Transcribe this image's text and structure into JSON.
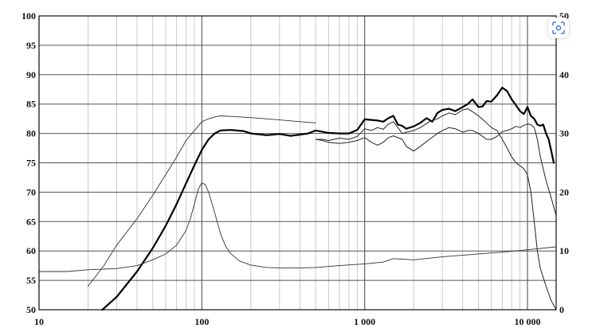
{
  "chart_data": {
    "type": "line",
    "title": "",
    "xlabel": "",
    "ylabel": "",
    "x_scale": "log",
    "xlim": [
      10,
      15000
    ],
    "ylim": [
      50,
      100
    ],
    "y2lim": [
      0,
      50
    ],
    "grid": true,
    "x_major_ticks": [
      {
        "value": 10,
        "label": "10"
      },
      {
        "value": 100,
        "label": "100"
      },
      {
        "value": 1000,
        "label": "1 000"
      },
      {
        "value": 10000,
        "label": "10 000"
      }
    ],
    "y_ticks": [
      {
        "value": 100,
        "label": "100"
      },
      {
        "value": 95,
        "label": "95"
      },
      {
        "value": 90,
        "label": "90"
      },
      {
        "value": 85,
        "label": "85"
      },
      {
        "value": 80,
        "label": "80"
      },
      {
        "value": 75,
        "label": "75"
      },
      {
        "value": 70,
        "label": "70"
      },
      {
        "value": 65,
        "label": "65"
      },
      {
        "value": 60,
        "label": "60"
      },
      {
        "value": 55,
        "label": "55"
      },
      {
        "value": 50,
        "label": "50"
      }
    ],
    "y2_ticks": [
      {
        "value": 50,
        "label": "50"
      },
      {
        "value": 40,
        "label": "40"
      },
      {
        "value": 30,
        "label": "30"
      },
      {
        "value": 20,
        "label": "20"
      },
      {
        "value": 10,
        "label": "10"
      },
      {
        "value": 0,
        "label": "0"
      }
    ],
    "series": [
      {
        "color": "#000000",
        "width": 2.2,
        "axis": "left",
        "points": [
          [
            24.5,
            50
          ],
          [
            30,
            52.2
          ],
          [
            40,
            56.5
          ],
          [
            50,
            60.5
          ],
          [
            60,
            64.3
          ],
          [
            70,
            68
          ],
          [
            80,
            71.5
          ],
          [
            90,
            74.6
          ],
          [
            100,
            77.2
          ],
          [
            110,
            79
          ],
          [
            120,
            80
          ],
          [
            130,
            80.5
          ],
          [
            150,
            80.6
          ],
          [
            180,
            80.4
          ],
          [
            200,
            80
          ],
          [
            250,
            79.7
          ],
          [
            300,
            79.9
          ],
          [
            350,
            79.6
          ],
          [
            400,
            79.8
          ],
          [
            450,
            80
          ],
          [
            500,
            80.5
          ],
          [
            550,
            80.3
          ],
          [
            600,
            80.1
          ],
          [
            700,
            80
          ],
          [
            800,
            80
          ],
          [
            900,
            80.6
          ],
          [
            1000,
            82.4
          ],
          [
            1100,
            82.3
          ],
          [
            1200,
            82.2
          ],
          [
            1300,
            82
          ],
          [
            1400,
            82.6
          ],
          [
            1500,
            83
          ],
          [
            1600,
            81.5
          ],
          [
            1700,
            81.3
          ],
          [
            1800,
            80.8
          ],
          [
            2000,
            81.2
          ],
          [
            2200,
            81.8
          ],
          [
            2400,
            82.6
          ],
          [
            2600,
            82
          ],
          [
            2800,
            83.5
          ],
          [
            3000,
            84
          ],
          [
            3300,
            84.2
          ],
          [
            3600,
            83.8
          ],
          [
            4000,
            84.5
          ],
          [
            4300,
            85
          ],
          [
            4600,
            85.8
          ],
          [
            5000,
            84.5
          ],
          [
            5300,
            84.6
          ],
          [
            5600,
            85.5
          ],
          [
            6000,
            85.4
          ],
          [
            6500,
            86.5
          ],
          [
            7000,
            87.8
          ],
          [
            7500,
            87.2
          ],
          [
            8000,
            85.8
          ],
          [
            8500,
            84.8
          ],
          [
            9000,
            83.8
          ],
          [
            9500,
            83.3
          ],
          [
            10000,
            84.5
          ],
          [
            10500,
            83
          ],
          [
            11000,
            82.5
          ],
          [
            11500,
            81.5
          ],
          [
            12000,
            81.3
          ],
          [
            12500,
            81.5
          ],
          [
            13000,
            80
          ],
          [
            13500,
            79
          ],
          [
            14000,
            77
          ],
          [
            14500,
            75
          ]
        ]
      },
      {
        "color": "#333333",
        "width": 0.9,
        "axis": "left",
        "points": [
          [
            20,
            54
          ],
          [
            25,
            57.5
          ],
          [
            30,
            61
          ],
          [
            40,
            65.5
          ],
          [
            50,
            69.5
          ],
          [
            60,
            73
          ],
          [
            70,
            76
          ],
          [
            80,
            78.8
          ],
          [
            90,
            80.5
          ],
          [
            100,
            82
          ],
          [
            110,
            82.5
          ],
          [
            120,
            82.8
          ],
          [
            130,
            83
          ],
          [
            150,
            82.9
          ],
          [
            200,
            82.7
          ],
          [
            300,
            82.3
          ],
          [
            400,
            82
          ],
          [
            500,
            81.8
          ]
        ]
      },
      {
        "color": "#222222",
        "width": 1.0,
        "axis": "left",
        "points": [
          [
            500,
            79
          ],
          [
            550,
            79
          ],
          [
            600,
            78.8
          ],
          [
            700,
            79.2
          ],
          [
            800,
            79
          ],
          [
            900,
            79.5
          ],
          [
            1000,
            80.8
          ],
          [
            1100,
            80.5
          ],
          [
            1200,
            81
          ],
          [
            1300,
            80.7
          ],
          [
            1400,
            81.6
          ],
          [
            1500,
            82
          ],
          [
            1600,
            81
          ],
          [
            1700,
            80
          ],
          [
            1800,
            80.2
          ],
          [
            2000,
            80.5
          ],
          [
            2200,
            81
          ],
          [
            2500,
            82
          ],
          [
            2800,
            82.5
          ],
          [
            3000,
            83
          ],
          [
            3300,
            83.5
          ],
          [
            3600,
            83.2
          ],
          [
            4000,
            84
          ],
          [
            4300,
            84.2
          ],
          [
            4600,
            83.7
          ],
          [
            5000,
            83
          ],
          [
            5500,
            82
          ],
          [
            6000,
            81
          ],
          [
            6500,
            80.5
          ],
          [
            7000,
            79
          ],
          [
            7500,
            77.5
          ],
          [
            8000,
            76
          ],
          [
            8500,
            75
          ],
          [
            9000,
            74.5
          ],
          [
            9500,
            74
          ],
          [
            10000,
            73
          ],
          [
            10500,
            70
          ],
          [
            11000,
            65
          ],
          [
            11500,
            60
          ],
          [
            12000,
            57
          ],
          [
            13000,
            54
          ],
          [
            14000,
            51.5
          ],
          [
            15000,
            50
          ]
        ]
      },
      {
        "color": "#222222",
        "width": 1.0,
        "axis": "left",
        "points": [
          [
            500,
            79
          ],
          [
            550,
            78.8
          ],
          [
            600,
            78.5
          ],
          [
            700,
            78.3
          ],
          [
            800,
            78.5
          ],
          [
            900,
            78.8
          ],
          [
            1000,
            79.3
          ],
          [
            1100,
            78.5
          ],
          [
            1200,
            78
          ],
          [
            1300,
            78.5
          ],
          [
            1400,
            79.3
          ],
          [
            1500,
            79.6
          ],
          [
            1700,
            79
          ],
          [
            1800,
            77.8
          ],
          [
            2000,
            77
          ],
          [
            2200,
            77.8
          ],
          [
            2500,
            79
          ],
          [
            2800,
            80
          ],
          [
            3000,
            80.5
          ],
          [
            3300,
            81
          ],
          [
            3600,
            80.8
          ],
          [
            4000,
            80.2
          ],
          [
            4300,
            80.5
          ],
          [
            4600,
            80.5
          ],
          [
            5000,
            80
          ],
          [
            5300,
            79.5
          ],
          [
            5600,
            79
          ],
          [
            6000,
            79
          ],
          [
            6500,
            79.5
          ],
          [
            7000,
            80.3
          ],
          [
            7500,
            80.5
          ],
          [
            8000,
            80.8
          ],
          [
            8500,
            81.2
          ],
          [
            9000,
            81
          ],
          [
            9500,
            81.4
          ],
          [
            10000,
            81.6
          ],
          [
            10500,
            81.5
          ],
          [
            11000,
            81
          ],
          [
            11500,
            79
          ],
          [
            12000,
            76
          ],
          [
            13000,
            72
          ],
          [
            14000,
            69
          ],
          [
            15000,
            66
          ]
        ]
      },
      {
        "color": "#333333",
        "width": 0.9,
        "axis": "right",
        "points": [
          [
            10,
            6.5
          ],
          [
            15,
            6.5
          ],
          [
            20,
            6.8
          ],
          [
            30,
            7
          ],
          [
            40,
            7.5
          ],
          [
            50,
            8.5
          ],
          [
            60,
            9.5
          ],
          [
            70,
            11
          ],
          [
            80,
            13.5
          ],
          [
            85,
            15.5
          ],
          [
            90,
            18
          ],
          [
            95,
            20.5
          ],
          [
            100,
            21.6
          ],
          [
            105,
            21.3
          ],
          [
            110,
            20
          ],
          [
            120,
            16.5
          ],
          [
            130,
            13
          ],
          [
            140,
            10.8
          ],
          [
            150,
            9.6
          ],
          [
            170,
            8.3
          ],
          [
            200,
            7.6
          ],
          [
            250,
            7.2
          ],
          [
            300,
            7.1
          ],
          [
            400,
            7.1
          ],
          [
            500,
            7.2
          ],
          [
            700,
            7.5
          ],
          [
            1000,
            7.8
          ],
          [
            1300,
            8.1
          ],
          [
            1500,
            8.7
          ],
          [
            1700,
            8.6
          ],
          [
            2000,
            8.5
          ],
          [
            3000,
            9
          ],
          [
            5000,
            9.5
          ],
          [
            7000,
            9.8
          ],
          [
            10000,
            10.2
          ],
          [
            15000,
            10.7
          ]
        ]
      }
    ]
  },
  "icons": {
    "lens_button": "lens-scan-icon"
  }
}
